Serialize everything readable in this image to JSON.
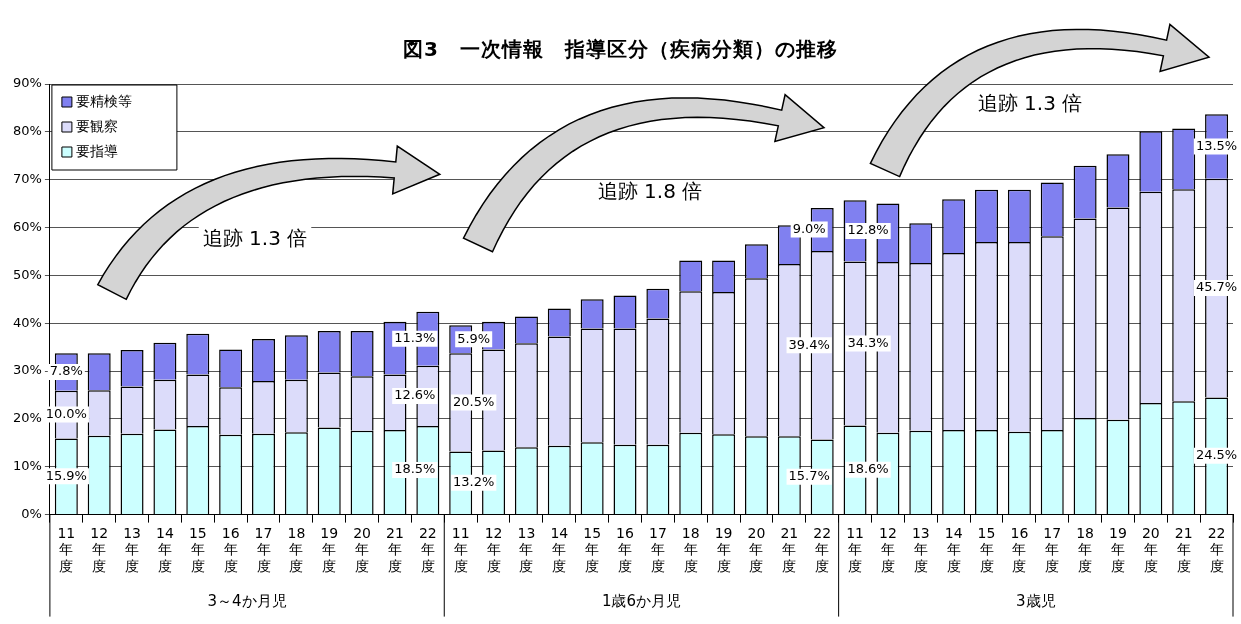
{
  "chart_data": {
    "type": "bar",
    "stacked": true,
    "title": "図3　一次情報　指導区分（疾病分類）の推移",
    "categories": [
      "11年度",
      "12年度",
      "13年度",
      "14年度",
      "15年度",
      "16年度",
      "17年度",
      "18年度",
      "19年度",
      "20年度",
      "21年度",
      "22年度",
      "11年度",
      "12年度",
      "13年度",
      "14年度",
      "15年度",
      "16年度",
      "17年度",
      "18年度",
      "19年度",
      "20年度",
      "21年度",
      "22年度",
      "11年度",
      "12年度",
      "13年度",
      "14年度",
      "15年度",
      "16年度",
      "17年度",
      "18年度",
      "19年度",
      "20年度",
      "21年度",
      "22年度"
    ],
    "series": [
      {
        "name": "要指導",
        "color": "#ccffff",
        "values": [
          15.9,
          16.5,
          16.9,
          17.8,
          18.5,
          16.7,
          16.9,
          17.2,
          18.2,
          17.5,
          17.7,
          18.5,
          13.2,
          13.4,
          14.1,
          14.4,
          15.1,
          14.6,
          14.6,
          17.1,
          16.8,
          16.4,
          16.4,
          15.7,
          18.6,
          17.1,
          17.5,
          17.7,
          17.7,
          17.3,
          17.7,
          20.2,
          19.8,
          23.3,
          23.7,
          24.5
        ],
        "value_labels": [
          "15.9%",
          null,
          null,
          null,
          null,
          null,
          null,
          null,
          null,
          null,
          null,
          "18.5%",
          "13.2%",
          null,
          null,
          null,
          null,
          null,
          null,
          null,
          null,
          null,
          null,
          "15.7%",
          "18.6%",
          null,
          null,
          null,
          null,
          null,
          null,
          null,
          null,
          null,
          null,
          "24.5%"
        ]
      },
      {
        "name": "要観察",
        "color": "#dcdcfa",
        "values": [
          10.0,
          9.5,
          9.9,
          10.4,
          10.8,
          9.9,
          11.0,
          11.0,
          11.5,
          11.4,
          11.6,
          12.6,
          20.5,
          21.1,
          21.7,
          22.8,
          23.8,
          24.3,
          26.4,
          29.6,
          29.7,
          33.0,
          36.0,
          39.4,
          34.3,
          35.7,
          35.1,
          37.0,
          39.3,
          39.7,
          40.5,
          41.7,
          44.4,
          44.2,
          44.3,
          45.7
        ],
        "value_labels": [
          "10.0%",
          null,
          null,
          null,
          null,
          null,
          null,
          null,
          null,
          null,
          null,
          "12.6%",
          "20.5%",
          null,
          null,
          null,
          null,
          null,
          null,
          null,
          null,
          null,
          null,
          "39.4%",
          "34.3%",
          null,
          null,
          null,
          null,
          null,
          null,
          null,
          null,
          null,
          null,
          "45.7%"
        ]
      },
      {
        "name": "要精検等",
        "color": "#8080f0",
        "values": [
          7.8,
          7.7,
          7.6,
          7.7,
          8.5,
          7.9,
          8.8,
          9.3,
          8.7,
          9.5,
          11.0,
          11.3,
          5.9,
          5.8,
          5.6,
          5.9,
          6.1,
          6.9,
          6.2,
          6.4,
          6.6,
          7.1,
          8.1,
          9.0,
          12.8,
          12.2,
          8.3,
          11.2,
          10.9,
          10.9,
          11.2,
          11.0,
          11.1,
          12.6,
          12.7,
          13.5
        ],
        "value_labels": [
          "7.8%",
          null,
          null,
          null,
          null,
          null,
          null,
          null,
          null,
          null,
          null,
          "11.3%",
          "5.9%",
          null,
          null,
          null,
          null,
          null,
          null,
          null,
          null,
          null,
          null,
          "9.0%",
          "12.8%",
          null,
          null,
          null,
          null,
          null,
          null,
          null,
          null,
          null,
          null,
          "13.5%"
        ]
      }
    ],
    "ylim": [
      0,
      90
    ],
    "yticks": [
      {
        "value": 0,
        "label": "0%"
      },
      {
        "value": 10,
        "label": "10%"
      },
      {
        "value": 20,
        "label": "20%"
      },
      {
        "value": 30,
        "label": "30%"
      },
      {
        "value": 40,
        "label": "40%"
      },
      {
        "value": 50,
        "label": "50%"
      },
      {
        "value": 60,
        "label": "60%"
      },
      {
        "value": 70,
        "label": "70%"
      },
      {
        "value": 80,
        "label": "80%"
      },
      {
        "value": 90,
        "label": "90%"
      }
    ],
    "grid": "y",
    "legend": "top left",
    "annotations": [
      "追跡 1.3 倍",
      "追跡 1.8 倍",
      "追跡 1.3 倍",
      "3～4か月児",
      "1歳6か月児",
      "3歳児"
    ]
  }
}
